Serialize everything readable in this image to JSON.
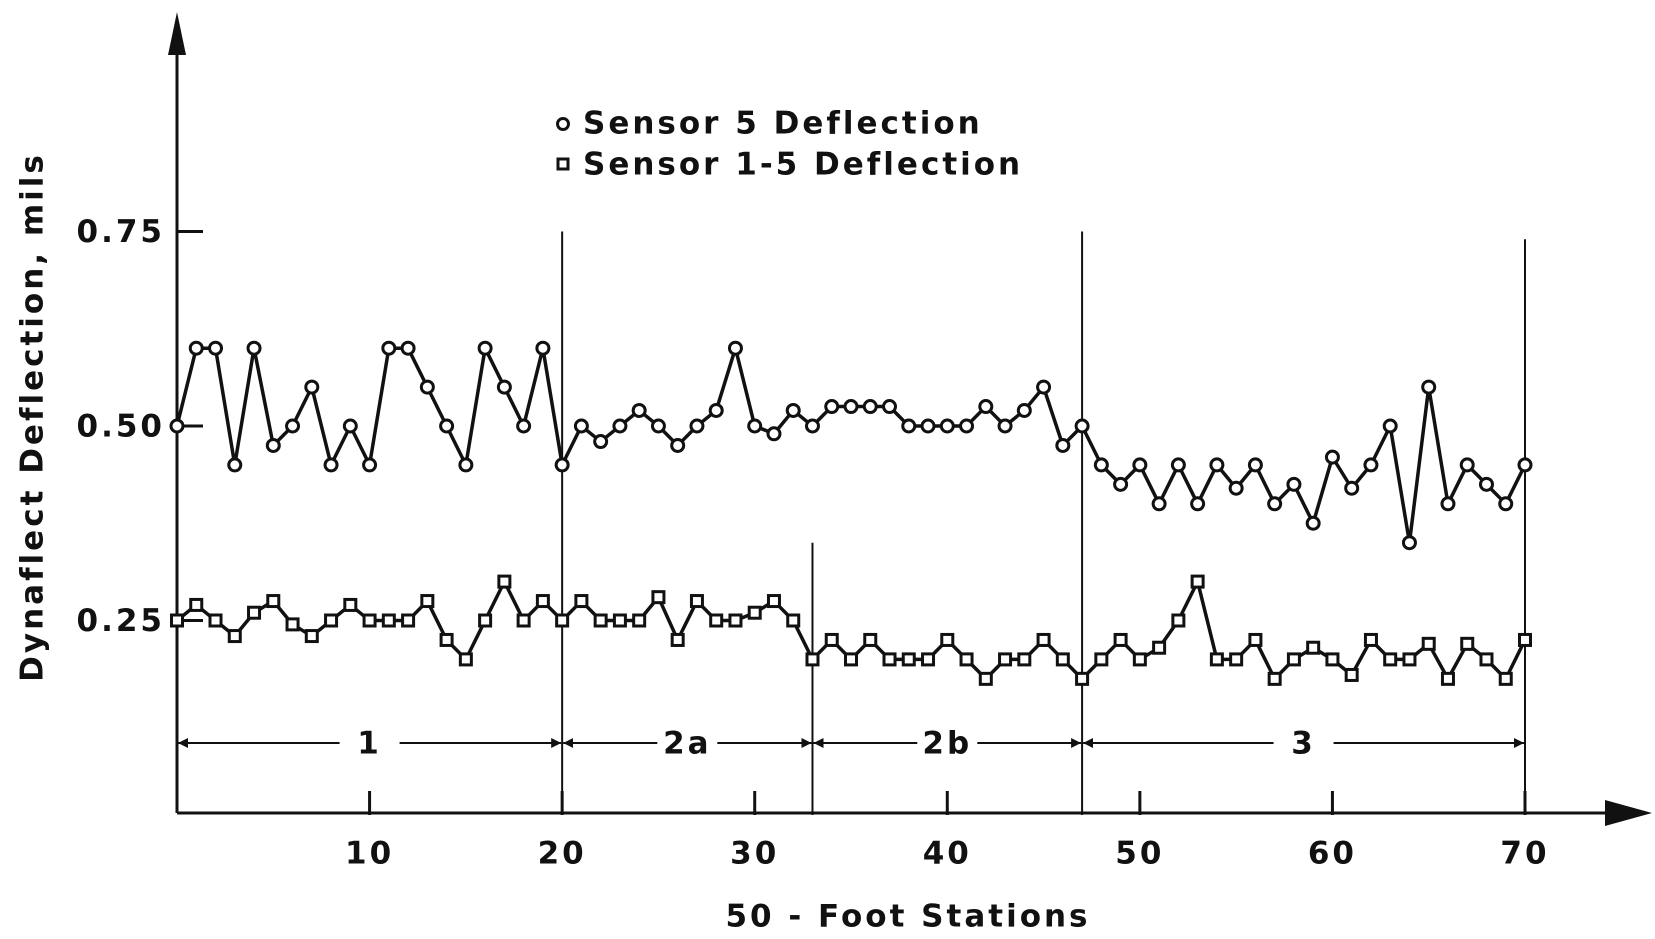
{
  "chart_data": {
    "type": "line",
    "x_label": "50 - Foot Stations",
    "y_label": "Dynaflect Deflection, mils",
    "x": [
      0,
      1,
      2,
      3,
      4,
      5,
      6,
      7,
      8,
      9,
      10,
      11,
      12,
      13,
      14,
      15,
      16,
      17,
      18,
      19,
      20,
      21,
      22,
      23,
      24,
      25,
      26,
      27,
      28,
      29,
      30,
      31,
      32,
      33,
      34,
      35,
      36,
      37,
      38,
      39,
      40,
      41,
      42,
      43,
      44,
      45,
      46,
      47,
      48,
      49,
      50,
      51,
      52,
      53,
      54,
      55,
      56,
      57,
      58,
      59,
      60,
      61,
      62,
      63,
      64,
      65,
      66,
      67,
      68,
      69,
      70
    ],
    "series": [
      {
        "name": "Sensor 5 Deflection",
        "color": "#111111",
        "marker": "circle",
        "values": [
          0.5,
          0.6,
          0.6,
          0.45,
          0.6,
          0.475,
          0.5,
          0.55,
          0.45,
          0.5,
          0.45,
          0.6,
          0.6,
          0.55,
          0.5,
          0.45,
          0.6,
          0.55,
          0.5,
          0.6,
          0.45,
          0.5,
          0.48,
          0.5,
          0.52,
          0.5,
          0.475,
          0.5,
          0.52,
          0.6,
          0.5,
          0.49,
          0.52,
          0.5,
          0.525,
          0.525,
          0.525,
          0.525,
          0.5,
          0.5,
          0.5,
          0.5,
          0.525,
          0.5,
          0.52,
          0.55,
          0.475,
          0.5,
          0.45,
          0.425,
          0.45,
          0.4,
          0.45,
          0.4,
          0.45,
          0.42,
          0.45,
          0.4,
          0.425,
          0.375,
          0.46,
          0.42,
          0.45,
          0.5,
          0.35,
          0.55,
          0.4,
          0.45,
          0.425,
          0.4,
          0.45
        ]
      },
      {
        "name": "Sensor 1-5 Deflection",
        "color": "#111111",
        "marker": "square",
        "values": [
          0.25,
          0.27,
          0.25,
          0.23,
          0.26,
          0.275,
          0.245,
          0.23,
          0.25,
          0.27,
          0.25,
          0.25,
          0.25,
          0.275,
          0.225,
          0.2,
          0.25,
          0.3,
          0.25,
          0.275,
          0.25,
          0.275,
          0.25,
          0.25,
          0.25,
          0.28,
          0.225,
          0.275,
          0.25,
          0.25,
          0.26,
          0.275,
          0.25,
          0.2,
          0.225,
          0.2,
          0.225,
          0.2,
          0.2,
          0.2,
          0.225,
          0.2,
          0.175,
          0.2,
          0.2,
          0.225,
          0.2,
          0.175,
          0.2,
          0.225,
          0.2,
          0.215,
          0.25,
          0.3,
          0.2,
          0.2,
          0.225,
          0.175,
          0.2,
          0.215,
          0.2,
          0.18,
          0.225,
          0.2,
          0.2,
          0.22,
          0.175,
          0.22,
          0.2,
          0.175,
          0.225
        ]
      }
    ],
    "xlim": [
      0,
      70
    ],
    "xticks": [
      10,
      20,
      30,
      40,
      50,
      60,
      70
    ],
    "ylim": [
      0,
      1.0
    ],
    "yticks": [
      0.25,
      {
        "value": 0.5,
        "label": "0.50"
      },
      0.75
    ],
    "dividers": [
      {
        "x": 20,
        "y": 0.75
      },
      {
        "x": 33,
        "y": 0.35
      },
      {
        "x": 47,
        "y": 0.75
      },
      {
        "x": 70,
        "y": 0.74
      }
    ],
    "sections": [
      {
        "label": "1",
        "from": 0,
        "to": 20
      },
      {
        "label": "2a",
        "from": 20,
        "to": 33
      },
      {
        "label": "2b",
        "from": 33,
        "to": 47
      },
      {
        "label": "3",
        "from": 47,
        "to": 70
      }
    ],
    "grid": false
  }
}
